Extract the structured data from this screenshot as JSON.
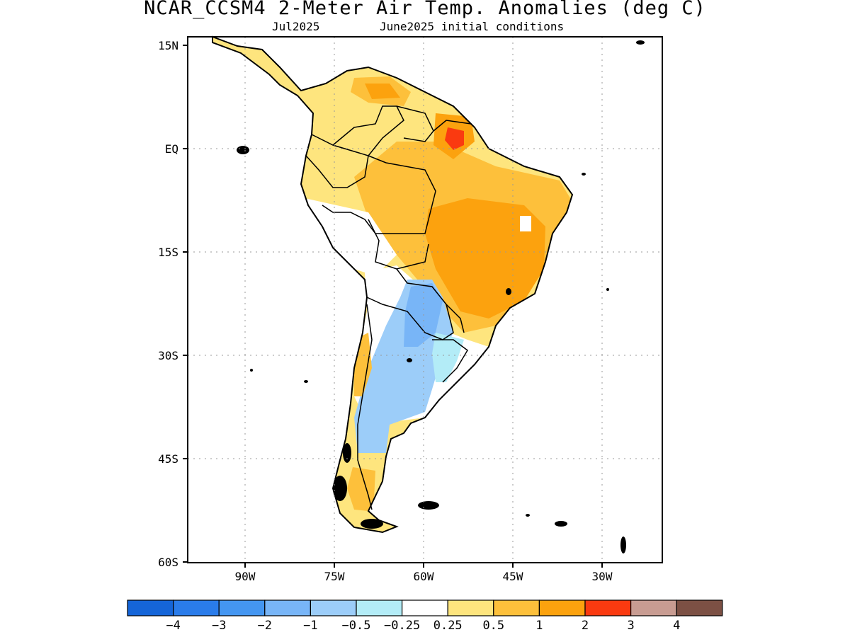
{
  "title": "NCAR_CCSM4 2-Meter Air Temp. Anomalies (deg C)",
  "subtitle_left": "Jul2025",
  "subtitle_right": "June2025 initial conditions",
  "axes": {
    "lat_ticks": [
      "15N",
      "EQ",
      "15S",
      "30S",
      "45S",
      "60S"
    ],
    "lon_ticks": [
      "90W",
      "75W",
      "60W",
      "45W",
      "30W"
    ]
  },
  "colorbar": {
    "labels": [
      "-4",
      "-3",
      "-2",
      "-1",
      "-0.5",
      "-0.25",
      "0.25",
      "0.5",
      "1",
      "2",
      "3",
      "4"
    ],
    "colors": [
      "#1565d8",
      "#2a7cea",
      "#4496f1",
      "#78b5f7",
      "#9ccdf9",
      "#b3ecf7",
      "#ffffff",
      "#fee57e",
      "#fdc03b",
      "#fca20e",
      "#fa3a10",
      "#c89c92",
      "#7c5044"
    ]
  },
  "palette": {
    "orange": "#fca20e",
    "light_orange": "#fdc03b",
    "yellow": "#fee57e",
    "red": "#fa3a10",
    "light_blue": "#9ccdf9",
    "cyan": "#b3ecf7",
    "mid_blue": "#78b5f7"
  }
}
